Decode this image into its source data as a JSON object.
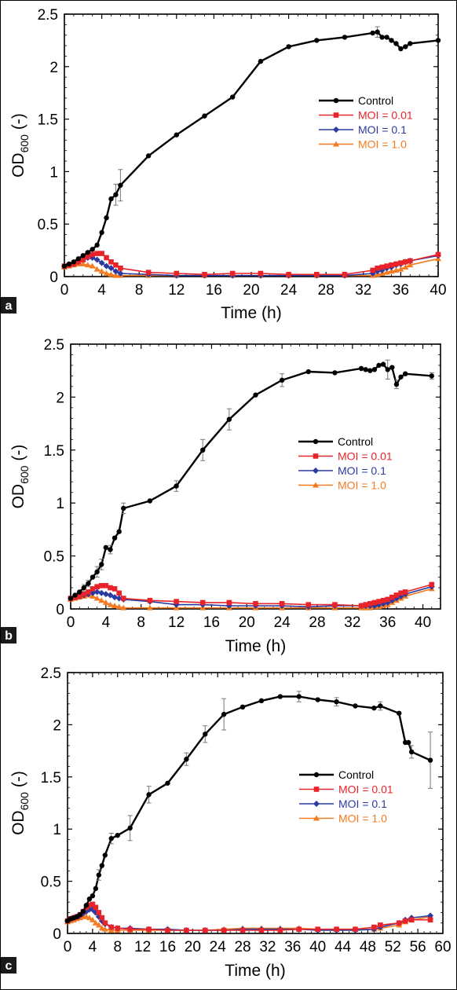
{
  "chart_data": [
    {
      "type": "line",
      "panel_label": "a",
      "xlabel": "Time (h)",
      "ylabel": "OD600 (-)",
      "ylabel_main": "OD",
      "ylabel_sub": "600",
      "ylabel_unit": "(-)",
      "xlim": [
        0,
        40
      ],
      "ylim": [
        0,
        2.5
      ],
      "xticks": [
        0,
        4,
        8,
        12,
        16,
        20,
        24,
        28,
        32,
        36,
        40
      ],
      "yticks": [
        0,
        0.5,
        1,
        1.5,
        2,
        2.5
      ],
      "ytick_labels": [
        "0",
        "0.5",
        "1",
        "1.5",
        "2",
        "2.5"
      ],
      "legend_position": "right-middle",
      "series": [
        {
          "name": "Control",
          "color": "#000000",
          "marker": "circle",
          "x": [
            0,
            0.5,
            1,
            1.5,
            2,
            2.5,
            3,
            3.5,
            4,
            4.5,
            5,
            5.5,
            6,
            9,
            12,
            15,
            18,
            21,
            24,
            27,
            30,
            33,
            33.5,
            34,
            34.5,
            35,
            35.5,
            36,
            36.5,
            37,
            40
          ],
          "y": [
            0.1,
            0.12,
            0.14,
            0.17,
            0.2,
            0.23,
            0.26,
            0.3,
            0.42,
            0.56,
            0.74,
            0.78,
            0.87,
            1.15,
            1.35,
            1.53,
            1.71,
            2.05,
            2.19,
            2.25,
            2.28,
            2.32,
            2.33,
            2.28,
            2.28,
            2.25,
            2.22,
            2.17,
            2.19,
            2.22,
            2.25
          ],
          "error": [
            0,
            0,
            0,
            0,
            0,
            0,
            0,
            0,
            0,
            0,
            0,
            0.1,
            0.15,
            0,
            0,
            0,
            0,
            0,
            0,
            0,
            0,
            0,
            0.05,
            0,
            0,
            0,
            0,
            0,
            0,
            0,
            0
          ]
        },
        {
          "name": "MOI = 0.01",
          "color": "#e8242a",
          "marker": "square",
          "x": [
            0,
            0.5,
            1,
            1.5,
            2,
            2.5,
            3,
            3.5,
            4,
            4.5,
            5,
            5.5,
            6,
            9,
            12,
            15,
            18,
            21,
            24,
            27,
            30,
            33,
            33.5,
            34,
            34.5,
            35,
            35.5,
            36,
            36.5,
            37,
            40
          ],
          "y": [
            0.1,
            0.11,
            0.12,
            0.14,
            0.16,
            0.19,
            0.21,
            0.22,
            0.22,
            0.18,
            0.14,
            0.11,
            0.08,
            0.04,
            0.03,
            0.02,
            0.03,
            0.03,
            0.02,
            0.02,
            0.02,
            0.06,
            0.08,
            0.09,
            0.1,
            0.11,
            0.12,
            0.13,
            0.14,
            0.15,
            0.21
          ],
          "error": []
        },
        {
          "name": "MOI = 0.1",
          "color": "#2b3aa0",
          "marker": "diamond",
          "x": [
            0,
            0.5,
            1,
            1.5,
            2,
            2.5,
            3,
            3.5,
            4,
            4.5,
            5,
            5.5,
            6,
            9,
            12,
            15,
            18,
            21,
            24,
            27,
            30,
            33,
            33.5,
            34,
            34.5,
            35,
            35.5,
            36,
            36.5,
            37,
            40
          ],
          "y": [
            0.1,
            0.11,
            0.12,
            0.14,
            0.16,
            0.18,
            0.18,
            0.16,
            0.13,
            0.1,
            0.08,
            0.05,
            0.03,
            0.02,
            0.01,
            0.01,
            0.01,
            0.01,
            0.01,
            0.01,
            0.01,
            0.03,
            0.05,
            0.06,
            0.08,
            0.09,
            0.11,
            0.12,
            0.14,
            0.15,
            0.2
          ],
          "error": []
        },
        {
          "name": "MOI = 1.0",
          "color": "#f47b20",
          "marker": "triangle",
          "x": [
            0,
            0.5,
            1,
            1.5,
            2,
            2.5,
            3,
            3.5,
            4,
            4.5,
            5,
            5.5,
            6,
            9,
            12,
            15,
            18,
            21,
            24,
            27,
            30,
            33,
            33.5,
            34,
            34.5,
            35,
            35.5,
            36,
            36.5,
            37,
            40
          ],
          "y": [
            0.09,
            0.1,
            0.11,
            0.12,
            0.12,
            0.11,
            0.1,
            0.07,
            0.05,
            0.03,
            0.02,
            0.01,
            0.01,
            0.01,
            0.01,
            0.01,
            0.01,
            0.01,
            0.01,
            0.01,
            0.01,
            0.01,
            0.02,
            0.03,
            0.04,
            0.05,
            0.06,
            0.07,
            0.09,
            0.11,
            0.17
          ],
          "error": []
        }
      ]
    },
    {
      "type": "line",
      "panel_label": "b",
      "xlabel": "Time (h)",
      "ylabel": "OD600 (-)",
      "ylabel_main": "OD",
      "ylabel_sub": "600",
      "ylabel_unit": "(-)",
      "xlim": [
        0,
        42
      ],
      "ylim": [
        0,
        2.5
      ],
      "xticks": [
        0,
        4,
        8,
        12,
        16,
        20,
        24,
        28,
        32,
        36,
        40
      ],
      "yticks": [
        0,
        0.5,
        1,
        1.5,
        2,
        2.5
      ],
      "ytick_labels": [
        "0",
        "0.5",
        "1",
        "1.5",
        "2",
        "2.5"
      ],
      "legend_position": "right-middle",
      "series": [
        {
          "name": "Control",
          "color": "#000000",
          "marker": "circle",
          "x": [
            0,
            0.5,
            1,
            1.5,
            2,
            2.5,
            3,
            3.5,
            4,
            4.5,
            5,
            5.5,
            6,
            9,
            12,
            15,
            18,
            21,
            24,
            27,
            30,
            33,
            33.5,
            34,
            34.5,
            35,
            35.5,
            36,
            36.5,
            37,
            37.5,
            38,
            41
          ],
          "y": [
            0.1,
            0.13,
            0.16,
            0.2,
            0.24,
            0.3,
            0.35,
            0.42,
            0.58,
            0.56,
            0.67,
            0.73,
            0.95,
            1.02,
            1.16,
            1.5,
            1.79,
            2.02,
            2.16,
            2.24,
            2.23,
            2.27,
            2.26,
            2.25,
            2.26,
            2.3,
            2.31,
            2.26,
            2.28,
            2.12,
            2.19,
            2.22,
            2.2
          ],
          "error": [
            0,
            0,
            0,
            0.03,
            0.03,
            0,
            0.05,
            0.05,
            0,
            0.04,
            0,
            0,
            0.05,
            0,
            0.05,
            0.1,
            0.1,
            0,
            0.06,
            0,
            0,
            0,
            0,
            0,
            0,
            0,
            0,
            0.09,
            0,
            0.04,
            0,
            0,
            0.03
          ]
        },
        {
          "name": "MOI = 0.01",
          "color": "#e8242a",
          "marker": "square",
          "x": [
            0,
            0.5,
            1,
            1.5,
            2,
            2.5,
            3,
            3.5,
            4,
            4.5,
            5,
            5.5,
            6,
            9,
            12,
            15,
            18,
            21,
            24,
            27,
            30,
            33,
            33.5,
            34,
            34.5,
            35,
            35.5,
            36,
            36.5,
            37,
            37.5,
            38,
            41
          ],
          "y": [
            0.1,
            0.11,
            0.12,
            0.14,
            0.16,
            0.19,
            0.21,
            0.22,
            0.22,
            0.2,
            0.19,
            0.15,
            0.1,
            0.08,
            0.07,
            0.06,
            0.06,
            0.05,
            0.05,
            0.04,
            0.04,
            0.03,
            0.04,
            0.05,
            0.06,
            0.07,
            0.08,
            0.09,
            0.11,
            0.13,
            0.15,
            0.16,
            0.23
          ],
          "error": []
        },
        {
          "name": "MOI = 0.1",
          "color": "#2b3aa0",
          "marker": "diamond",
          "x": [
            0,
            0.5,
            1,
            1.5,
            2,
            2.5,
            3,
            3.5,
            4,
            4.5,
            5,
            5.5,
            6,
            9,
            12,
            15,
            18,
            21,
            24,
            27,
            30,
            33,
            33.5,
            34,
            34.5,
            35,
            35.5,
            36,
            36.5,
            37,
            37.5,
            38,
            41
          ],
          "y": [
            0.1,
            0.11,
            0.12,
            0.13,
            0.14,
            0.15,
            0.16,
            0.15,
            0.14,
            0.13,
            0.11,
            0.1,
            0.09,
            0.07,
            0.04,
            0.04,
            0.03,
            0.03,
            0.03,
            0.02,
            0.03,
            0.03,
            0.03,
            0.03,
            0.03,
            0.04,
            0.05,
            0.06,
            0.08,
            0.1,
            0.12,
            0.14,
            0.21
          ],
          "error": []
        },
        {
          "name": "MOI = 1.0",
          "color": "#f47b20",
          "marker": "triangle",
          "x": [
            0,
            0.5,
            1,
            1.5,
            2,
            2.5,
            3,
            3.5,
            4,
            4.5,
            5,
            5.5,
            6,
            9,
            12,
            15,
            18,
            21,
            24,
            27,
            30,
            33,
            33.5,
            34,
            34.5,
            35,
            35.5,
            36,
            36.5,
            37,
            37.5,
            38,
            41
          ],
          "y": [
            0.09,
            0.1,
            0.11,
            0.12,
            0.13,
            0.12,
            0.1,
            0.08,
            0.06,
            0.04,
            0.03,
            0.02,
            0.01,
            0.01,
            0.01,
            0.01,
            0.01,
            0.01,
            0.01,
            0.01,
            0.01,
            0.01,
            0.01,
            0.01,
            0.02,
            0.02,
            0.03,
            0.04,
            0.06,
            0.08,
            0.1,
            0.12,
            0.19
          ],
          "error": []
        }
      ]
    },
    {
      "type": "line",
      "panel_label": "c",
      "xlabel": "Time (h)",
      "ylabel": "OD600 (-)",
      "ylabel_main": "OD",
      "ylabel_sub": "600",
      "ylabel_unit": "(-)",
      "xlim": [
        0,
        60
      ],
      "ylim": [
        0,
        2.5
      ],
      "xticks": [
        0,
        4,
        8,
        12,
        16,
        20,
        24,
        28,
        32,
        36,
        40,
        44,
        48,
        52,
        56,
        60
      ],
      "yticks": [
        0,
        0.5,
        1,
        1.5,
        2,
        2.5
      ],
      "ytick_labels": [
        "0",
        "0.5",
        "1",
        "1.5",
        "2",
        "2.5"
      ],
      "legend_position": "right-lower",
      "series": [
        {
          "name": "Control",
          "color": "#000000",
          "marker": "circle",
          "x": [
            0,
            0.5,
            1,
            1.5,
            2,
            2.5,
            3,
            3.5,
            4,
            4.5,
            5,
            5.5,
            6,
            7,
            8,
            10,
            13,
            16,
            19,
            22,
            25,
            28,
            31,
            34,
            37,
            40,
            43,
            46,
            49,
            50,
            53,
            54,
            54.5,
            55,
            58
          ],
          "y": [
            0.12,
            0.14,
            0.15,
            0.16,
            0.18,
            0.21,
            0.27,
            0.33,
            0.36,
            0.43,
            0.56,
            0.65,
            0.75,
            0.91,
            0.94,
            1.01,
            1.33,
            1.44,
            1.67,
            1.91,
            2.1,
            2.17,
            2.23,
            2.27,
            2.27,
            2.24,
            2.22,
            2.18,
            2.16,
            2.18,
            2.11,
            1.83,
            1.83,
            1.74,
            1.66
          ],
          "error": [
            0,
            0,
            0,
            0,
            0,
            0,
            0,
            0,
            0,
            0,
            0.05,
            0,
            0,
            0.05,
            0,
            0.12,
            0.08,
            0,
            0.06,
            0.08,
            0.15,
            0,
            0,
            0,
            0.05,
            0,
            0.04,
            0,
            0,
            0.04,
            0,
            0,
            0,
            0.06,
            0.27
          ]
        },
        {
          "name": "MOI = 0.01",
          "color": "#e8242a",
          "marker": "square",
          "x": [
            0,
            0.5,
            1,
            1.5,
            2,
            2.5,
            3,
            3.5,
            4,
            4.5,
            5,
            5.5,
            6,
            7,
            8,
            10,
            13,
            16,
            19,
            22,
            25,
            28,
            31,
            34,
            37,
            40,
            43,
            46,
            49,
            50,
            53,
            54,
            55,
            58
          ],
          "y": [
            0.12,
            0.14,
            0.15,
            0.16,
            0.18,
            0.21,
            0.25,
            0.27,
            0.28,
            0.25,
            0.2,
            0.15,
            0.1,
            0.06,
            0.05,
            0.04,
            0.04,
            0.03,
            0.03,
            0.03,
            0.03,
            0.03,
            0.03,
            0.03,
            0.04,
            0.04,
            0.04,
            0.04,
            0.06,
            0.08,
            0.1,
            0.12,
            0.13,
            0.13
          ],
          "error": []
        },
        {
          "name": "MOI = 0.1",
          "color": "#2b3aa0",
          "marker": "diamond",
          "x": [
            0,
            0.5,
            1,
            1.5,
            2,
            2.5,
            3,
            3.5,
            4,
            4.5,
            5,
            5.5,
            6,
            7,
            8,
            10,
            13,
            16,
            19,
            22,
            25,
            28,
            31,
            34,
            37,
            40,
            43,
            46,
            49,
            50,
            53,
            54,
            55,
            58
          ],
          "y": [
            0.12,
            0.14,
            0.15,
            0.16,
            0.17,
            0.19,
            0.21,
            0.23,
            0.23,
            0.2,
            0.16,
            0.12,
            0.09,
            0.06,
            0.05,
            0.05,
            0.04,
            0.04,
            0.03,
            0.03,
            0.03,
            0.04,
            0.04,
            0.04,
            0.04,
            0.03,
            0.03,
            0.03,
            0.04,
            0.06,
            0.1,
            0.13,
            0.15,
            0.17
          ],
          "error": []
        },
        {
          "name": "MOI = 1.0",
          "color": "#f47b20",
          "marker": "triangle",
          "x": [
            0,
            0.5,
            1,
            1.5,
            2,
            2.5,
            3,
            3.5,
            4,
            4.5,
            5,
            5.5,
            6,
            7,
            8,
            10,
            13,
            16,
            19,
            22,
            25,
            28,
            31,
            34,
            37,
            40,
            43,
            46,
            49,
            50,
            53,
            54,
            55,
            58
          ],
          "y": [
            0.11,
            0.12,
            0.13,
            0.14,
            0.15,
            0.16,
            0.16,
            0.15,
            0.13,
            0.1,
            0.08,
            0.05,
            0.04,
            0.03,
            0.03,
            0.03,
            0.03,
            0.03,
            0.03,
            0.03,
            0.04,
            0.05,
            0.05,
            0.05,
            0.05,
            0.04,
            0.04,
            0.04,
            0.04,
            0.05,
            0.08,
            0.11,
            0.13,
            0.16
          ],
          "error": []
        }
      ]
    }
  ]
}
